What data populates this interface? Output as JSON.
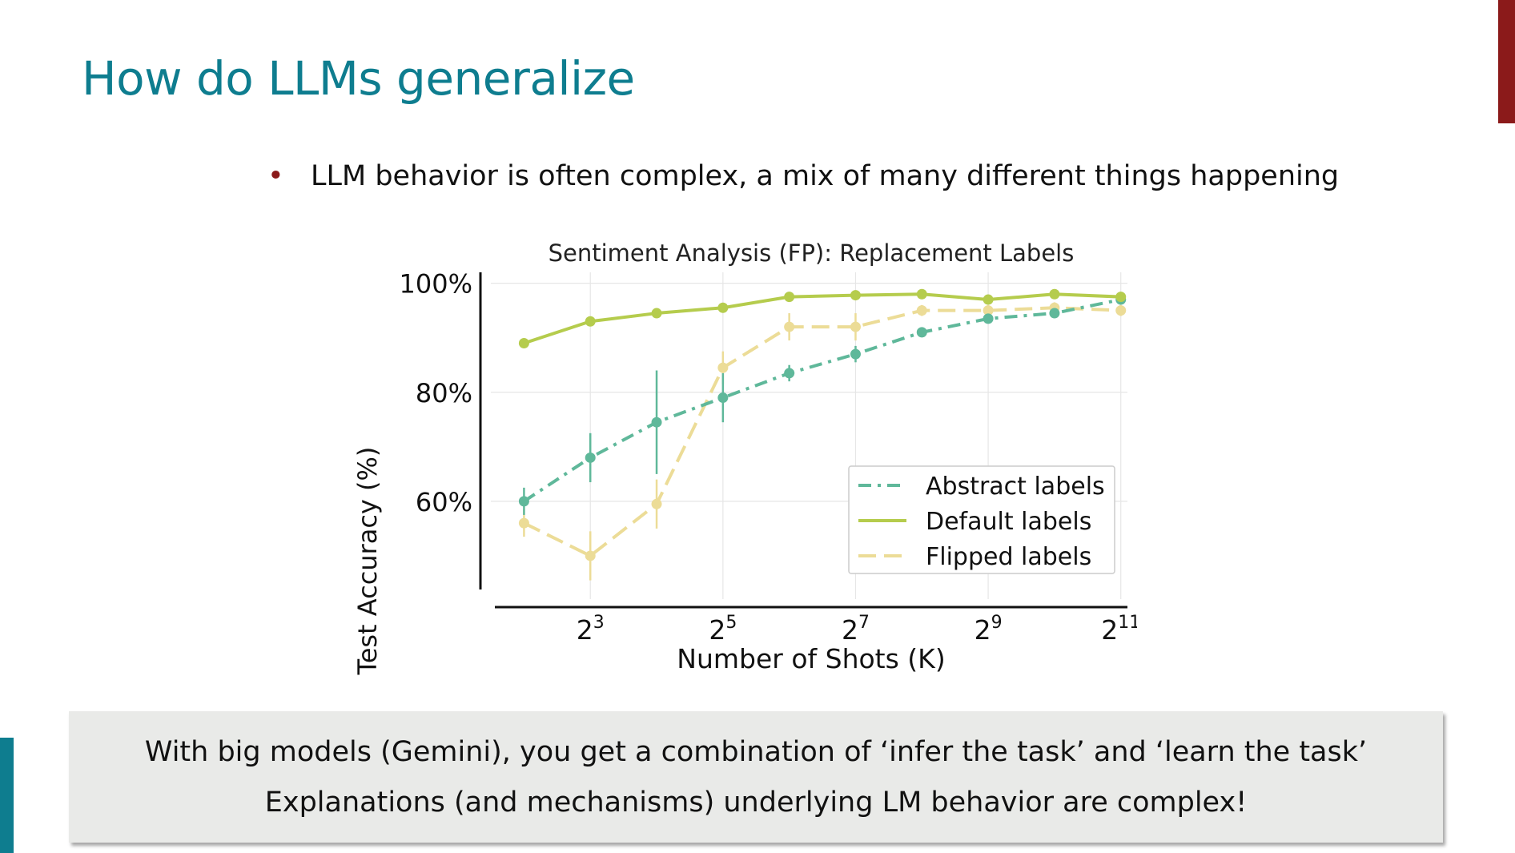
{
  "slide": {
    "title": "How do LLMs generalize",
    "bullet": "LLM behavior is often complex, a mix of many different things happening",
    "callout_line1": "With big models (Gemini), you get a combination of ‘infer the task’ and ‘learn the task’",
    "callout_line2": "Explanations (and mechanisms) underlying LM behavior are complex!",
    "colors": {
      "title": "#0e7d8f",
      "accent_right": "#8b1a1a",
      "accent_left": "#0e7d8f",
      "callout_bg": "#e9eae8"
    }
  },
  "chart_data": {
    "type": "line",
    "title": "Sentiment Analysis (FP): Replacement Labels",
    "xlabel": "Number of Shots (K)",
    "ylabel": "Test Accuracy (%)",
    "x_scale": "log2",
    "x": [
      4,
      8,
      16,
      32,
      64,
      128,
      256,
      512,
      1024,
      2048
    ],
    "x_ticks": [
      {
        "base": "2",
        "exp": "3",
        "value": 8
      },
      {
        "base": "2",
        "exp": "5",
        "value": 32
      },
      {
        "base": "2",
        "exp": "7",
        "value": 128
      },
      {
        "base": "2",
        "exp": "9",
        "value": 512
      },
      {
        "base": "2",
        "exp": "11",
        "value": 2048
      }
    ],
    "y_ticks": [
      {
        "label": "100%",
        "value": 100
      },
      {
        "label": "80%",
        "value": 80
      },
      {
        "label": "60%",
        "value": 60
      }
    ],
    "ylim": [
      45,
      102
    ],
    "grid": true,
    "legend_position": "bottom-right",
    "series": [
      {
        "name": "Abstract labels",
        "color": "#5fb89a",
        "dash": "dash-dot",
        "values": [
          60,
          68,
          74.5,
          79,
          83.5,
          87,
          91,
          93.5,
          94.5,
          97
        ],
        "error": [
          2.5,
          4.5,
          9.5,
          4.5,
          1.5,
          1.5,
          0.8,
          0.8,
          0.8,
          0.5
        ]
      },
      {
        "name": "Default labels",
        "color": "#b5cc4d",
        "dash": "solid",
        "values": [
          89,
          93,
          94.5,
          95.5,
          97.5,
          97.8,
          98,
          97,
          98,
          97.5
        ],
        "error": [
          0.5,
          0.5,
          0.5,
          0.5,
          0.5,
          0.5,
          0.5,
          0.5,
          0.5,
          0.5
        ]
      },
      {
        "name": "Flipped labels",
        "color": "#ecdc97",
        "dash": "dashed",
        "values": [
          56,
          50,
          59.5,
          84.5,
          92,
          92,
          95,
          95,
          95.5,
          95
        ],
        "error": [
          2.5,
          4.5,
          4.5,
          3,
          2.5,
          2.5,
          1,
          1,
          1,
          1
        ]
      }
    ]
  }
}
